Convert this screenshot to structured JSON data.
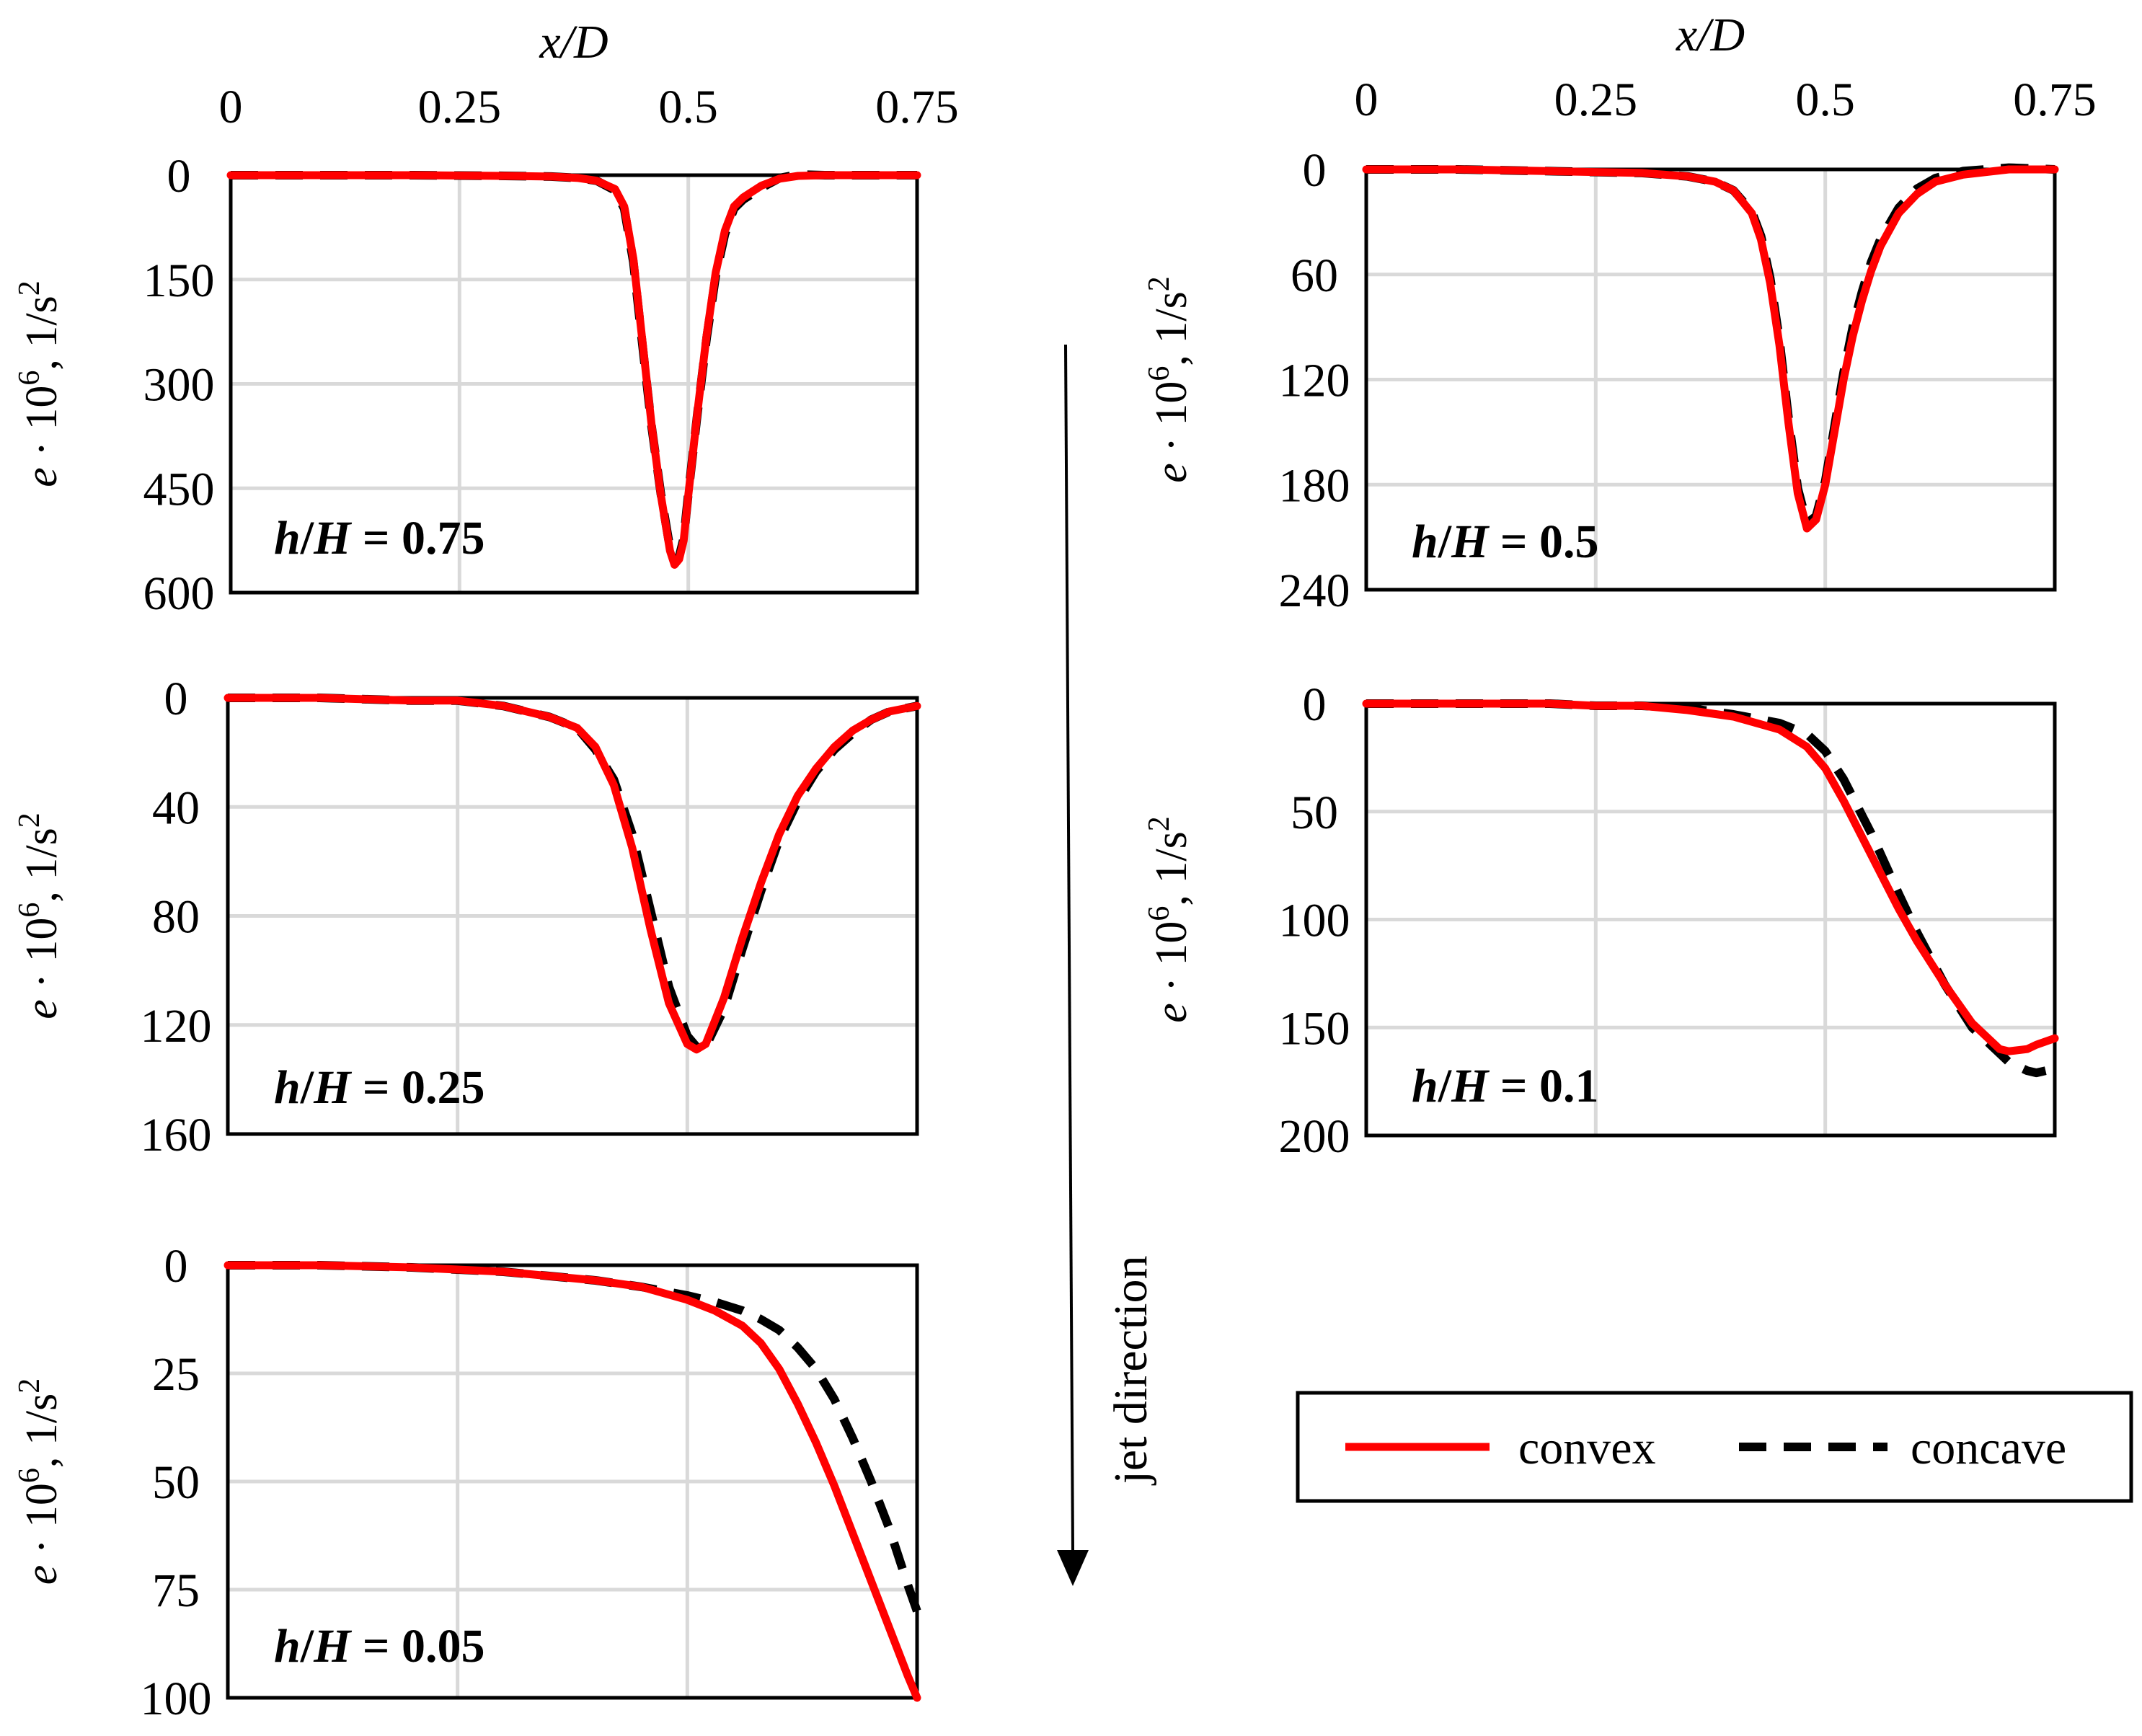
{
  "figure": {
    "legend": {
      "convex": "convex",
      "concave": "concave"
    },
    "arrow_label": "jet direction"
  },
  "colors": {
    "convex": "#ff0000",
    "concave": "#000000",
    "grid": "#d9d9d9"
  },
  "chart_data": [
    {
      "id": "hH075",
      "type": "line",
      "panel_label": {
        "prefix_italic": "h",
        "slash": "/",
        "second_italic": "H",
        "suffix": " = 0.75"
      },
      "xlabel": "x/D",
      "ylabel": {
        "var": "e",
        "mid": " · 10",
        "sup": "6",
        "rest": ", 1/s",
        "sup2": "2"
      },
      "xlim": [
        0,
        0.75
      ],
      "ylim": [
        0,
        600
      ],
      "y_inverted": true,
      "x_ticks": [
        "0",
        "0.25",
        "0.5",
        "0.75"
      ],
      "y_ticks": [
        "0",
        "150",
        "300",
        "450",
        "600"
      ],
      "series": [
        {
          "name": "convex",
          "style": "solid",
          "x": [
            0,
            0.1,
            0.2,
            0.3,
            0.35,
            0.38,
            0.4,
            0.42,
            0.43,
            0.44,
            0.45,
            0.46,
            0.47,
            0.48,
            0.485,
            0.49,
            0.495,
            0.5,
            0.51,
            0.52,
            0.53,
            0.54,
            0.55,
            0.56,
            0.58,
            0.6,
            0.62,
            0.65,
            0.7,
            0.75
          ],
          "y": [
            0,
            0,
            0,
            1,
            2,
            4,
            8,
            20,
            45,
            120,
            240,
            360,
            460,
            540,
            560,
            552,
            525,
            460,
            340,
            230,
            140,
            80,
            45,
            32,
            15,
            5,
            1,
            0,
            0,
            0
          ]
        },
        {
          "name": "concave",
          "style": "dashed",
          "x": [
            0,
            0.1,
            0.2,
            0.3,
            0.35,
            0.38,
            0.4,
            0.42,
            0.43,
            0.44,
            0.45,
            0.46,
            0.47,
            0.48,
            0.485,
            0.49,
            0.495,
            0.5,
            0.51,
            0.52,
            0.53,
            0.54,
            0.55,
            0.56,
            0.58,
            0.6,
            0.62,
            0.65,
            0.7,
            0.75
          ],
          "y": [
            0,
            0,
            0,
            1,
            2,
            4,
            8,
            22,
            48,
            125,
            245,
            362,
            458,
            536,
            555,
            548,
            522,
            458,
            342,
            234,
            145,
            85,
            48,
            35,
            18,
            4,
            -1,
            0,
            0,
            0
          ]
        }
      ]
    },
    {
      "id": "hH05",
      "type": "line",
      "panel_label": {
        "prefix_italic": "h",
        "slash": "/",
        "second_italic": "H",
        "suffix": " = 0.5"
      },
      "xlabel": "x/D",
      "ylabel": {
        "var": "e",
        "mid": " · 10",
        "sup": "6",
        "rest": ", 1/s",
        "sup2": "2"
      },
      "xlim": [
        0,
        0.75
      ],
      "ylim": [
        0,
        240
      ],
      "y_inverted": true,
      "x_ticks": [
        "0",
        "0.25",
        "0.5",
        "0.75"
      ],
      "y_ticks": [
        "0",
        "60",
        "120",
        "180",
        "240"
      ],
      "series": [
        {
          "name": "convex",
          "style": "solid",
          "x": [
            0,
            0.1,
            0.2,
            0.3,
            0.35,
            0.38,
            0.4,
            0.42,
            0.43,
            0.44,
            0.45,
            0.46,
            0.47,
            0.48,
            0.49,
            0.5,
            0.51,
            0.52,
            0.53,
            0.54,
            0.55,
            0.56,
            0.58,
            0.6,
            0.62,
            0.65,
            0.7,
            0.75
          ],
          "y": [
            0,
            0,
            1,
            2,
            4,
            7,
            12,
            25,
            40,
            65,
            100,
            145,
            185,
            205,
            200,
            180,
            150,
            120,
            95,
            75,
            58,
            44,
            25,
            14,
            7,
            3,
            0,
            0
          ]
        },
        {
          "name": "concave",
          "style": "dashed",
          "x": [
            0,
            0.1,
            0.2,
            0.3,
            0.35,
            0.38,
            0.4,
            0.42,
            0.43,
            0.44,
            0.45,
            0.46,
            0.47,
            0.48,
            0.49,
            0.5,
            0.51,
            0.52,
            0.53,
            0.54,
            0.55,
            0.56,
            0.58,
            0.6,
            0.62,
            0.65,
            0.7,
            0.75
          ],
          "y": [
            0,
            0,
            1,
            2,
            4,
            7,
            12,
            24,
            38,
            62,
            97,
            142,
            182,
            202,
            198,
            178,
            147,
            116,
            90,
            70,
            53,
            40,
            22,
            11,
            5,
            1,
            -1,
            0
          ]
        }
      ]
    },
    {
      "id": "hH025",
      "type": "line",
      "panel_label": {
        "prefix_italic": "h",
        "slash": "/",
        "second_italic": "H",
        "suffix": " = 0.25"
      },
      "ylabel": {
        "var": "e",
        "mid": " · 10",
        "sup": "6",
        "rest": ", 1/s",
        "sup2": "2"
      },
      "xlim": [
        0,
        0.75
      ],
      "ylim": [
        0,
        160
      ],
      "y_inverted": true,
      "x_ticks": [],
      "y_ticks": [
        "0",
        "40",
        "80",
        "120",
        "160"
      ],
      "series": [
        {
          "name": "convex",
          "style": "solid",
          "x": [
            0,
            0.1,
            0.2,
            0.25,
            0.3,
            0.35,
            0.38,
            0.4,
            0.42,
            0.44,
            0.46,
            0.48,
            0.5,
            0.51,
            0.52,
            0.54,
            0.56,
            0.58,
            0.6,
            0.62,
            0.64,
            0.66,
            0.68,
            0.7,
            0.72,
            0.75
          ],
          "y": [
            0,
            0,
            1,
            1,
            3,
            7,
            11,
            18,
            32,
            55,
            85,
            112,
            127,
            129,
            127,
            110,
            88,
            68,
            50,
            36,
            26,
            18,
            12,
            8,
            5,
            3
          ]
        },
        {
          "name": "concave",
          "style": "dashed",
          "x": [
            0,
            0.1,
            0.2,
            0.25,
            0.3,
            0.35,
            0.38,
            0.4,
            0.42,
            0.44,
            0.46,
            0.48,
            0.5,
            0.51,
            0.52,
            0.54,
            0.56,
            0.58,
            0.6,
            0.62,
            0.64,
            0.66,
            0.68,
            0.7,
            0.72,
            0.75
          ],
          "y": [
            0,
            0,
            1,
            1,
            3,
            7,
            11,
            19,
            30,
            50,
            78,
            106,
            124,
            128,
            128,
            114,
            92,
            71,
            52,
            38,
            27,
            19,
            13,
            8,
            5,
            3
          ]
        }
      ]
    },
    {
      "id": "hH01",
      "type": "line",
      "panel_label": {
        "prefix_italic": "h",
        "slash": "/",
        "second_italic": "H",
        "suffix": " = 0.1"
      },
      "ylabel": {
        "var": "e",
        "mid": " · 10",
        "sup": "6",
        "rest": ", 1/s",
        "sup2": "2"
      },
      "xlim": [
        0,
        0.75
      ],
      "ylim": [
        0,
        200
      ],
      "y_inverted": true,
      "x_ticks": [],
      "y_ticks": [
        "0",
        "50",
        "100",
        "150",
        "200"
      ],
      "series": [
        {
          "name": "convex",
          "style": "solid",
          "x": [
            0,
            0.1,
            0.2,
            0.25,
            0.3,
            0.35,
            0.4,
            0.45,
            0.48,
            0.5,
            0.52,
            0.55,
            0.58,
            0.6,
            0.63,
            0.66,
            0.69,
            0.7,
            0.72,
            0.73,
            0.75
          ],
          "y": [
            0,
            0,
            0,
            1,
            1,
            3,
            6,
            12,
            20,
            30,
            45,
            70,
            95,
            110,
            130,
            148,
            160,
            161,
            160,
            158,
            155
          ]
        },
        {
          "name": "concave",
          "style": "dashed",
          "x": [
            0,
            0.1,
            0.2,
            0.25,
            0.3,
            0.35,
            0.4,
            0.45,
            0.48,
            0.5,
            0.52,
            0.55,
            0.58,
            0.6,
            0.63,
            0.66,
            0.69,
            0.7,
            0.72,
            0.73,
            0.74
          ],
          "y": [
            0,
            0,
            0,
            1,
            1,
            2,
            5,
            9,
            14,
            22,
            35,
            60,
            88,
            106,
            130,
            150,
            162,
            166,
            170,
            171,
            170
          ]
        }
      ]
    },
    {
      "id": "hH005",
      "type": "line",
      "panel_label": {
        "prefix_italic": "h",
        "slash": "/",
        "second_italic": "H",
        "suffix": " = 0.05"
      },
      "ylabel": {
        "var": "e",
        "mid": " · 10",
        "sup": "6",
        "rest": ", 1/s",
        "sup2": "2"
      },
      "xlim": [
        0,
        0.75
      ],
      "ylim": [
        0,
        100
      ],
      "y_inverted": true,
      "x_ticks": [],
      "y_ticks": [
        "0",
        "25",
        "50",
        "75",
        "100"
      ],
      "series": [
        {
          "name": "convex",
          "style": "solid",
          "x": [
            0,
            0.1,
            0.2,
            0.3,
            0.35,
            0.4,
            0.45,
            0.5,
            0.53,
            0.56,
            0.58,
            0.6,
            0.62,
            0.64,
            0.66,
            0.68,
            0.7,
            0.72,
            0.74,
            0.75
          ],
          "y": [
            0,
            0,
            0.5,
            1.5,
            2.5,
            3.5,
            5,
            8,
            10.5,
            14,
            18,
            24,
            32,
            41,
            51,
            62,
            73,
            84,
            95,
            100
          ]
        },
        {
          "name": "concave",
          "style": "dashed",
          "x": [
            0,
            0.1,
            0.2,
            0.3,
            0.35,
            0.4,
            0.45,
            0.5,
            0.53,
            0.56,
            0.58,
            0.6,
            0.62,
            0.64,
            0.66,
            0.68,
            0.7,
            0.72,
            0.74,
            0.75
          ],
          "y": [
            0,
            0,
            0.5,
            1.5,
            2.5,
            3.5,
            5,
            7,
            8.5,
            10.5,
            12.5,
            15,
            19,
            24,
            31,
            40,
            50,
            61,
            74,
            80
          ]
        }
      ]
    }
  ]
}
